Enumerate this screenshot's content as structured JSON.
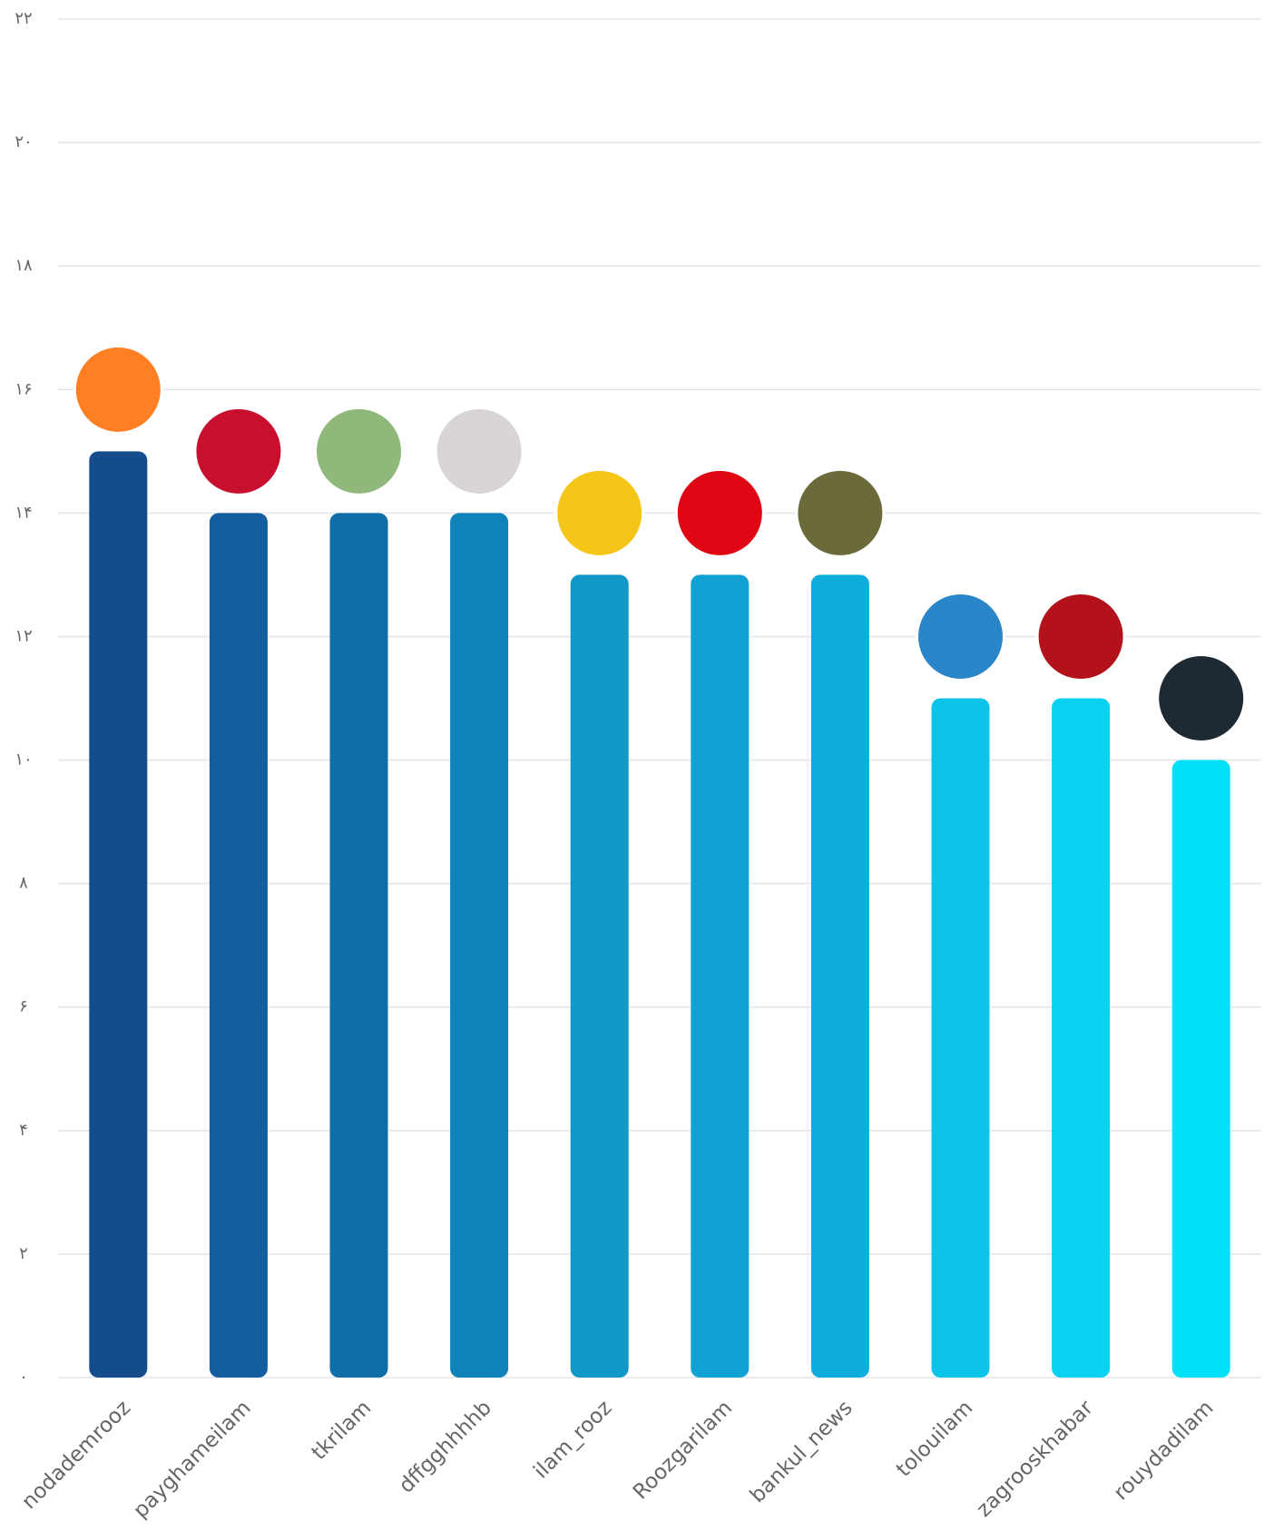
{
  "chart_data": {
    "type": "bar",
    "categories": [
      "nodademrooz",
      "payghameilam",
      "tkrilam",
      "dffgghhhhb",
      "ilam_rooz",
      "Roozgarilam",
      "bankul_news",
      "tolouilam",
      "zagrooskhabar",
      "rouydadilam"
    ],
    "values": [
      15,
      14,
      14,
      14,
      13,
      13,
      13,
      11,
      11,
      10
    ],
    "colors": [
      "#154d8c",
      "#135f9d",
      "#0f6ea6",
      "#0e82b9",
      "#1198c9",
      "#11a2d4",
      "#0eaedc",
      "#0cc4e8",
      "#09d1f0",
      "#00e1f8"
    ],
    "ylim": [
      0,
      22
    ],
    "yticks": [
      {
        "value": 0,
        "label": "۰"
      },
      {
        "value": 2,
        "label": "۲"
      },
      {
        "value": 4,
        "label": "۴"
      },
      {
        "value": 6,
        "label": "۶"
      },
      {
        "value": 8,
        "label": "۸"
      },
      {
        "value": 10,
        "label": "۱۰"
      },
      {
        "value": 12,
        "label": "۱۲"
      },
      {
        "value": 14,
        "label": "۱۴"
      },
      {
        "value": 16,
        "label": "۱۶"
      },
      {
        "value": 18,
        "label": "۱۸"
      },
      {
        "value": 20,
        "label": "۲۰"
      },
      {
        "value": 22,
        "label": "۲۲"
      }
    ],
    "grid": true
  }
}
